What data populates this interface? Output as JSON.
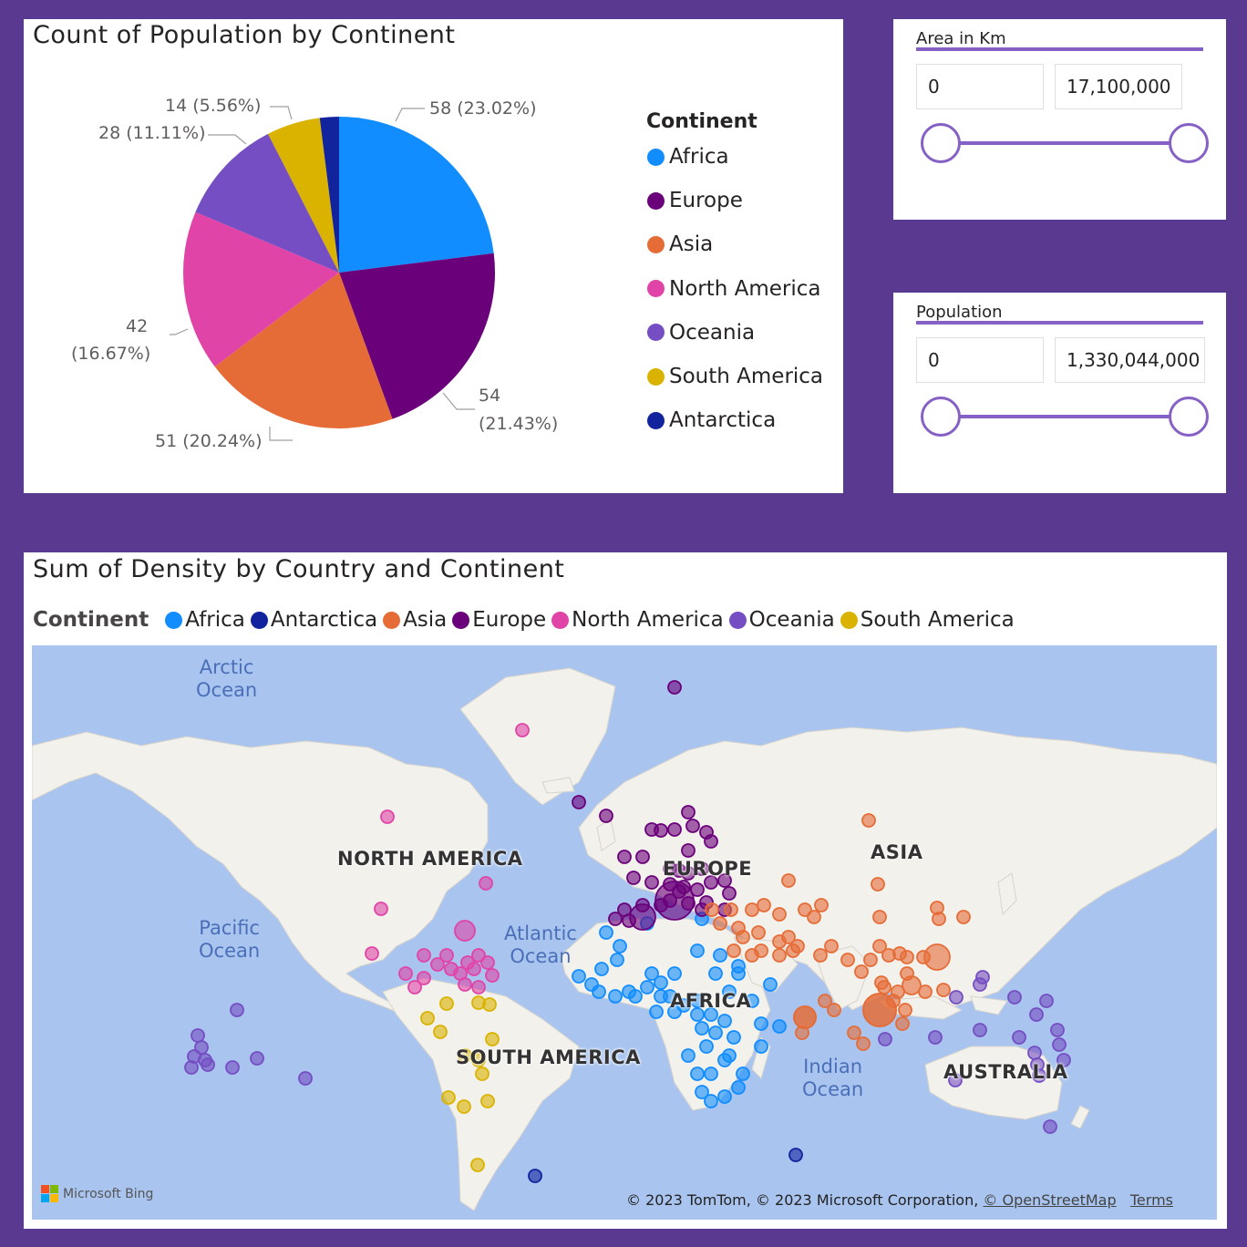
{
  "pie_card": {
    "title": "Count of Population by Continent",
    "legend_title": "Continent"
  },
  "chart_data": {
    "type": "pie",
    "title": "Count of Population by Continent",
    "legend_title": "Continent",
    "slices": [
      {
        "name": "Africa",
        "value": 58,
        "label": "58 (23.02%)",
        "color": "#118dff"
      },
      {
        "name": "Europe",
        "value": 54,
        "label_line1": "54",
        "label_line2": "(21.43%)",
        "color": "#6b007b"
      },
      {
        "name": "Asia",
        "value": 51,
        "label": "51 (20.24%)",
        "color": "#e66c37"
      },
      {
        "name": "North America",
        "value": 42,
        "label_line1": "42",
        "label_line2": "(16.67%)",
        "color": "#e044a7"
      },
      {
        "name": "Oceania",
        "value": 28,
        "label": "28 (11.11%)",
        "color": "#744ec2"
      },
      {
        "name": "South America",
        "value": 14,
        "label": "14 (5.56%)",
        "color": "#d9b300"
      },
      {
        "name": "Antarctica",
        "value": 5,
        "color": "#12239e"
      }
    ]
  },
  "slicer_area": {
    "title": "Area in Km",
    "min": "0",
    "max": "17,100,000"
  },
  "slicer_population": {
    "title": "Population",
    "min": "0",
    "max": "1,330,044,000"
  },
  "map_card": {
    "title": "Sum of Density by Country and Continent",
    "legend_title": "Continent",
    "legend": [
      {
        "name": "Africa",
        "color": "#118dff"
      },
      {
        "name": "Antarctica",
        "color": "#12239e"
      },
      {
        "name": "Asia",
        "color": "#e66c37"
      },
      {
        "name": "Europe",
        "color": "#6b007b"
      },
      {
        "name": "North America",
        "color": "#e044a7"
      },
      {
        "name": "Oceania",
        "color": "#744ec2"
      },
      {
        "name": "South America",
        "color": "#d9b300"
      }
    ],
    "ocean_labels": {
      "arctic_1": "Arctic",
      "arctic_2": "Ocean",
      "pacific_1": "Pacific",
      "pacific_2": "Ocean",
      "atlantic_1": "Atlantic",
      "atlantic_2": "Ocean",
      "indian_1": "Indian",
      "indian_2": "Ocean"
    },
    "continent_labels": {
      "north_america": "NORTH AMERICA",
      "europe": "EUROPE",
      "asia": "ASIA",
      "africa": "AFRICA",
      "south_america": "SOUTH AMERICA",
      "australia": "AUSTRALIA"
    },
    "bing_label": "Microsoft Bing",
    "attribution": "© 2023 TomTom, © 2023 Microsoft Corporation,",
    "osm_link": "© OpenStreetMap",
    "terms_link": "Terms"
  }
}
